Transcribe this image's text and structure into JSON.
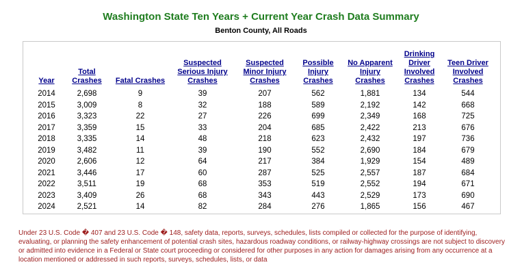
{
  "title": "Washington State Ten Years + Current Year Crash Data Summary",
  "subtitle": "Benton County, All Roads",
  "colors": {
    "title_green": "#1F7D1F",
    "header_blue": "#00008B",
    "footnote_red": "#9C1B1B",
    "table_border_gray": "#C9C9C9"
  },
  "chart_data": {
    "type": "table",
    "columns": [
      [
        "Year"
      ],
      [
        "Total",
        "Crashes"
      ],
      [
        "Fatal Crashes"
      ],
      [
        "Suspected",
        "Serious Injury",
        "Crashes"
      ],
      [
        "Suspected",
        "Minor Injury",
        "Crashes"
      ],
      [
        "Possible",
        "Injury",
        "Crashes"
      ],
      [
        "No Apparent",
        "Injury",
        "Crashes"
      ],
      [
        "Drinking",
        "Driver",
        "Involved",
        "Crashes"
      ],
      [
        "Teen Driver",
        "Involved",
        "Crashes"
      ]
    ],
    "rows": [
      [
        "2014",
        "2,698",
        "9",
        "39",
        "207",
        "562",
        "1,881",
        "134",
        "544"
      ],
      [
        "2015",
        "3,009",
        "8",
        "32",
        "188",
        "589",
        "2,192",
        "142",
        "668"
      ],
      [
        "2016",
        "3,323",
        "22",
        "27",
        "226",
        "699",
        "2,349",
        "168",
        "725"
      ],
      [
        "2017",
        "3,359",
        "15",
        "33",
        "204",
        "685",
        "2,422",
        "213",
        "676"
      ],
      [
        "2018",
        "3,335",
        "14",
        "48",
        "218",
        "623",
        "2,432",
        "197",
        "736"
      ],
      [
        "2019",
        "3,482",
        "11",
        "39",
        "190",
        "552",
        "2,690",
        "184",
        "679"
      ],
      [
        "2020",
        "2,606",
        "12",
        "64",
        "217",
        "384",
        "1,929",
        "154",
        "489"
      ],
      [
        "2021",
        "3,446",
        "17",
        "60",
        "287",
        "525",
        "2,557",
        "187",
        "684"
      ],
      [
        "2022",
        "3,511",
        "19",
        "68",
        "353",
        "519",
        "2,552",
        "194",
        "671"
      ],
      [
        "2023",
        "3,409",
        "26",
        "68",
        "343",
        "443",
        "2,529",
        "173",
        "690"
      ],
      [
        "2024",
        "2,521",
        "14",
        "82",
        "284",
        "276",
        "1,865",
        "156",
        "467"
      ]
    ]
  },
  "footnote": "Under 23 U.S. Code � 407 and 23 U.S. Code � 148, safety data, reports, surveys, schedules, lists compiled or collected for the purpose of identifying, evaluating, or planning the safety enhancement of potential crash sites, hazardous roadway conditions, or railway-highway crossings are not subject to discovery or admitted into evidence in a Federal or State court proceeding or considered for other purposes in any action for damages arising from any occurrence at a location mentioned or addressed in such reports, surveys, schedules, lists, or data"
}
